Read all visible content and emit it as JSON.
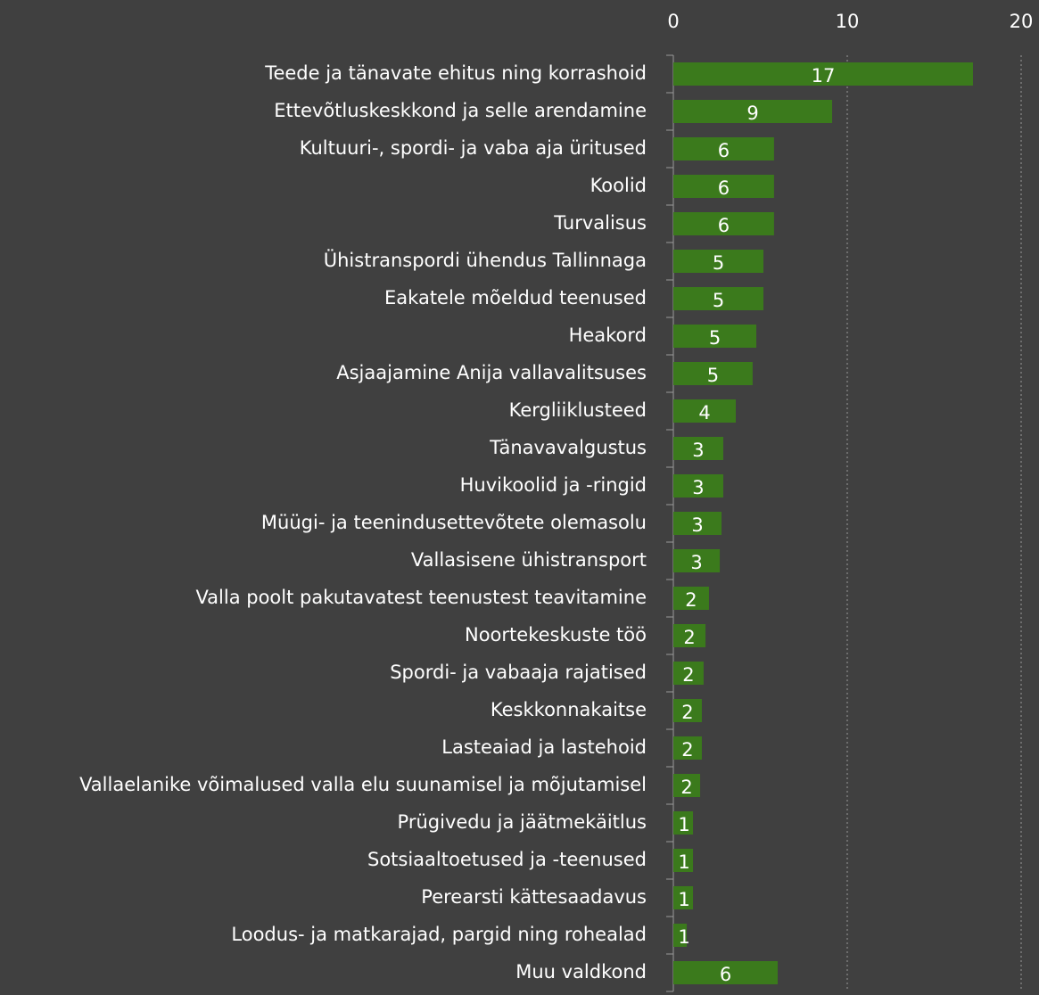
{
  "chart_data": {
    "type": "bar",
    "orientation": "horizontal",
    "categories": [
      "Teede ja tänavate ehitus ning korrashoid",
      "Ettevõtluskeskkond ja selle arendamine",
      "Kultuuri-, spordi- ja vaba aja üritused",
      "Koolid",
      "Turvalisus",
      "Ühistranspordi ühendus Tallinnaga",
      "Eakatele mõeldud teenused",
      "Heakord",
      "Asjaajamine Anija vallavalitsuses",
      "Kergliiklusteed",
      "Tänavavalgustus",
      "Huvikoolid ja -ringid",
      "Müügi- ja teenindusettevõtete olemasolu",
      "Vallasisene ühistransport",
      "Valla poolt pakutavatest teenustest teavitamine",
      "Noortekeskuste töö",
      "Spordi- ja vabaaja rajatised",
      "Keskkonnakaitse",
      "Lasteaiad ja lastehoid",
      "Vallaelanike võimalused valla elu suunamisel ja mõjutamisel",
      "Prügivedu ja jäätmekäitlus",
      "Sotsiaaltoetused ja -teenused",
      "Perearsti kättesaadavus",
      "Loodus- ja matkarajad, pargid ning rohealad",
      "Muu valdkond"
    ],
    "values": [
      17.23,
      9.13,
      5.79,
      5.79,
      5.79,
      5.18,
      5.18,
      4.77,
      4.56,
      3.59,
      2.87,
      2.87,
      2.77,
      2.67,
      2.05,
      1.85,
      1.74,
      1.64,
      1.64,
      1.54,
      1.13,
      1.13,
      1.13,
      0.77,
      6.0
    ],
    "value_labels": [
      "17",
      "9",
      "6",
      "6",
      "6",
      "5",
      "5",
      "5",
      "5",
      "4",
      "3",
      "3",
      "3",
      "3",
      "2",
      "2",
      "2",
      "2",
      "2",
      "2",
      "1",
      "1",
      "1",
      "1",
      "6"
    ],
    "color": "#3b7a1c",
    "xlim": [
      0,
      20
    ],
    "xticks": [
      0,
      10,
      20
    ],
    "grid": true
  }
}
